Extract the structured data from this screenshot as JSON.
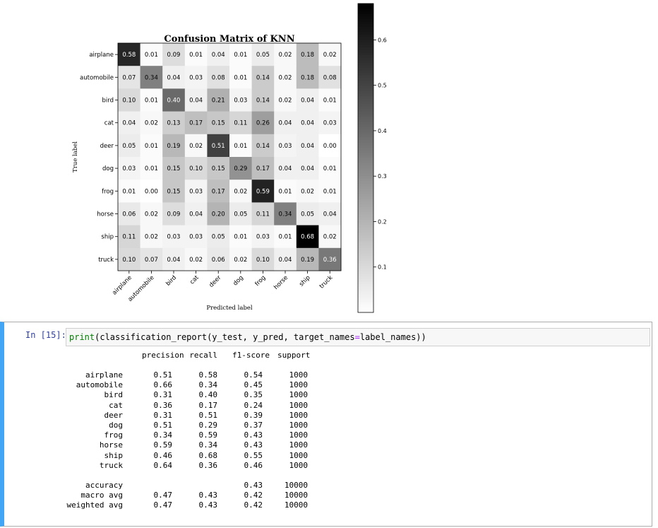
{
  "chart_data": {
    "type": "heatmap",
    "title": "Confusion Matrix of KNN",
    "xlabel": "Predicted label",
    "ylabel": "True label",
    "labels": [
      "airplane",
      "automobile",
      "bird",
      "cat",
      "deer",
      "dog",
      "frog",
      "horse",
      "ship",
      "truck"
    ],
    "matrix": [
      [
        0.58,
        0.01,
        0.09,
        0.01,
        0.04,
        0.01,
        0.05,
        0.02,
        0.18,
        0.02
      ],
      [
        0.07,
        0.34,
        0.04,
        0.03,
        0.08,
        0.01,
        0.14,
        0.02,
        0.18,
        0.08
      ],
      [
        0.1,
        0.01,
        0.4,
        0.04,
        0.21,
        0.03,
        0.14,
        0.02,
        0.04,
        0.01
      ],
      [
        0.04,
        0.02,
        0.13,
        0.17,
        0.15,
        0.11,
        0.26,
        0.04,
        0.04,
        0.03
      ],
      [
        0.05,
        0.01,
        0.19,
        0.02,
        0.51,
        0.01,
        0.14,
        0.03,
        0.04,
        0.0
      ],
      [
        0.03,
        0.01,
        0.15,
        0.1,
        0.15,
        0.29,
        0.17,
        0.04,
        0.04,
        0.01
      ],
      [
        0.01,
        0.0,
        0.15,
        0.03,
        0.17,
        0.02,
        0.59,
        0.01,
        0.02,
        0.01
      ],
      [
        0.06,
        0.02,
        0.09,
        0.04,
        0.2,
        0.05,
        0.11,
        0.34,
        0.05,
        0.04
      ],
      [
        0.11,
        0.02,
        0.03,
        0.03,
        0.05,
        0.01,
        0.03,
        0.01,
        0.68,
        0.02
      ],
      [
        0.1,
        0.07,
        0.04,
        0.02,
        0.06,
        0.02,
        0.1,
        0.04,
        0.19,
        0.36
      ]
    ],
    "colormap": "Greys",
    "value_range": [
      0.0,
      0.68
    ],
    "colorbar_ticks": [
      "0.1",
      "0.2",
      "0.3",
      "0.4",
      "0.5",
      "0.6"
    ],
    "colorbar_tick_values": [
      0.1,
      0.2,
      0.3,
      0.4,
      0.5,
      0.6
    ]
  },
  "notebook": {
    "prompt": "In [15]:",
    "code": {
      "fn": "print",
      "open": "(",
      "fn2": "classification_report",
      "args1": "(y_test, y_pred, target_names",
      "eq": "=",
      "args2": "label_names))"
    },
    "report": {
      "headers": [
        "precision",
        "recall",
        "f1-score",
        "support"
      ],
      "rows": [
        [
          "airplane",
          "0.51",
          "0.58",
          "0.54",
          "1000"
        ],
        [
          "automobile",
          "0.66",
          "0.34",
          "0.45",
          "1000"
        ],
        [
          "bird",
          "0.31",
          "0.40",
          "0.35",
          "1000"
        ],
        [
          "cat",
          "0.36",
          "0.17",
          "0.24",
          "1000"
        ],
        [
          "deer",
          "0.31",
          "0.51",
          "0.39",
          "1000"
        ],
        [
          "dog",
          "0.51",
          "0.29",
          "0.37",
          "1000"
        ],
        [
          "frog",
          "0.34",
          "0.59",
          "0.43",
          "1000"
        ],
        [
          "horse",
          "0.59",
          "0.34",
          "0.43",
          "1000"
        ],
        [
          "ship",
          "0.46",
          "0.68",
          "0.55",
          "1000"
        ],
        [
          "truck",
          "0.64",
          "0.36",
          "0.46",
          "1000"
        ]
      ],
      "summary": [
        [
          "accuracy",
          "",
          "",
          "0.43",
          "10000"
        ],
        [
          "macro avg",
          "0.47",
          "0.43",
          "0.42",
          "10000"
        ],
        [
          "weighted avg",
          "0.47",
          "0.43",
          "0.42",
          "10000"
        ]
      ]
    }
  }
}
